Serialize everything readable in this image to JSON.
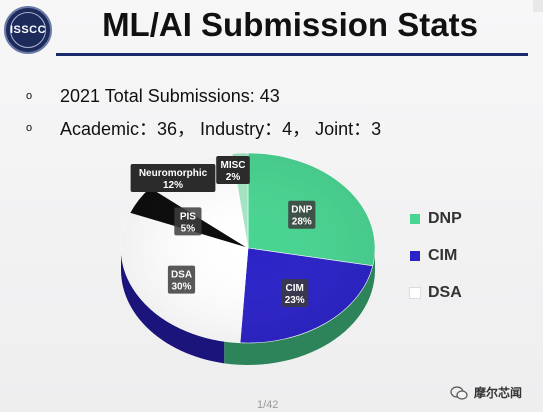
{
  "header": {
    "logo_text": "ISSCC",
    "title": "ML/AI Submission Stats"
  },
  "bullets": [
    {
      "marker": "o",
      "text": "2021 Total Submissions: 43"
    },
    {
      "marker": "o",
      "text": "Academic：36， Industry：4， Joint：3"
    }
  ],
  "chart_data": {
    "type": "pie",
    "slices": [
      {
        "name": "DNP",
        "value": 28,
        "label": "28%",
        "color": "#48d491"
      },
      {
        "name": "CIM",
        "value": 23,
        "label": "23%",
        "color": "#2b22c7"
      },
      {
        "name": "DSA",
        "value": 30,
        "label": "30%",
        "color": "#ffffff"
      },
      {
        "name": "PIS",
        "value": 5,
        "label": "5%",
        "color": "#0a0a0a"
      },
      {
        "name": "Neuromorphic",
        "value": 12,
        "label": "12%",
        "color": "#ffffff"
      },
      {
        "name": "MISC",
        "value": 2,
        "label": "2%",
        "color": "#a5e6c4"
      }
    ],
    "legend": [
      {
        "label": "DNP",
        "color": "#48d491"
      },
      {
        "label": "CIM",
        "color": "#2b22c7"
      },
      {
        "label": "DSA",
        "color": "#ffffff"
      }
    ],
    "legend_position": "right"
  },
  "footer": {
    "page": "1/42",
    "watermark": "摩尔芯闻"
  }
}
